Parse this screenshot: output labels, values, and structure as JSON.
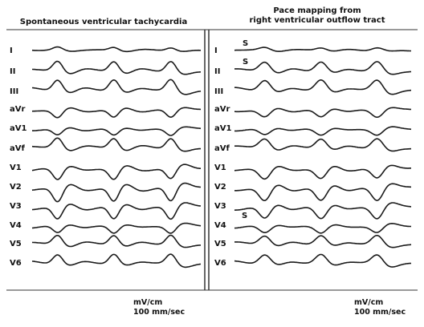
{
  "panels": [
    {
      "title_lines": [
        "Spontaneous ventricular tachycardia"
      ],
      "scale_label": "mV/cm",
      "speed_label": "100 mm/sec"
    },
    {
      "title_lines": [
        "Pace mapping from",
        "right ventricular outflow tract"
      ],
      "scale_label": "mV/cm",
      "speed_label": "100 mm/sec"
    }
  ],
  "leads": [
    "I",
    "II",
    "III",
    "aVr",
    "aV1",
    "aVf",
    "V1",
    "V2",
    "V3",
    "V4",
    "V5",
    "V6"
  ],
  "pacing_spike_label": "S",
  "colors": {
    "trace": "#1a1a1a",
    "frame": "#333333"
  }
}
